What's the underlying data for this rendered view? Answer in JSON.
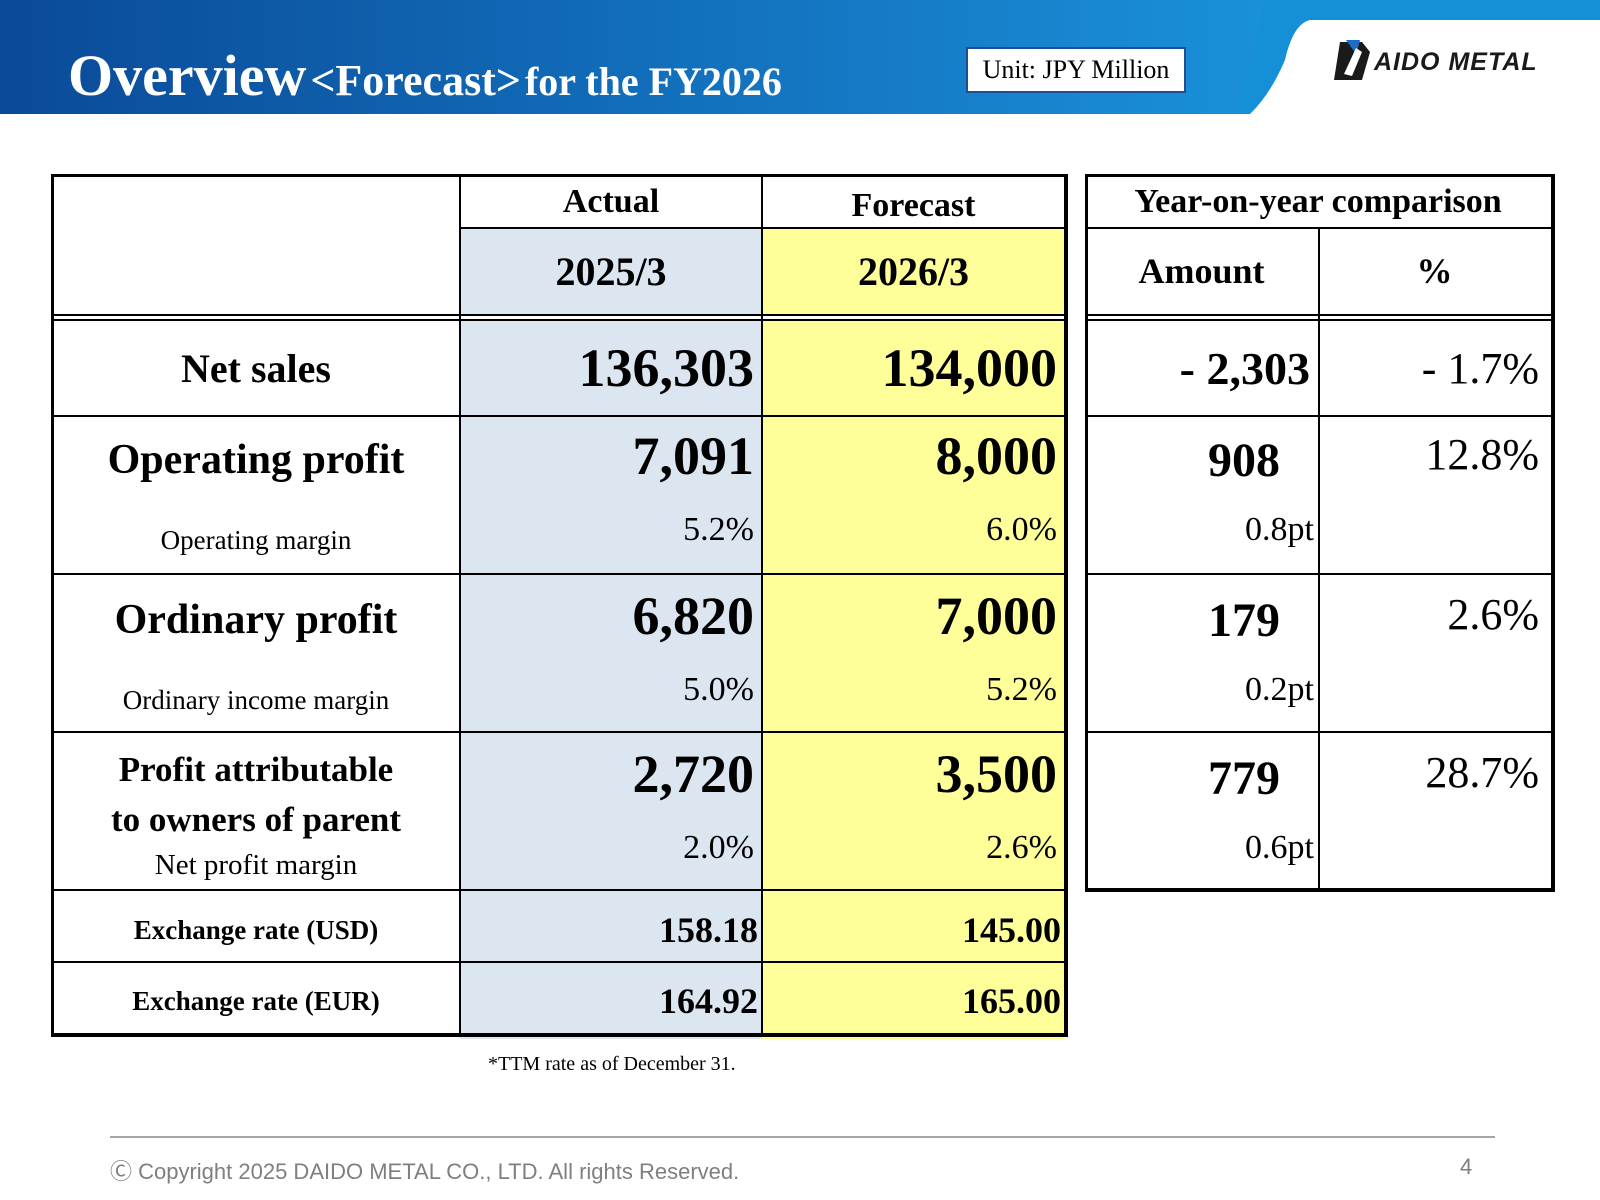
{
  "header": {
    "title_main": "Overview",
    "title_forecast": "<Forecast>",
    "title_suffix": "for the FY2026",
    "unit": "Unit: JPY Million",
    "logo_text": "AIDO METAL",
    "colors": {
      "band_dark": "#0a4a98",
      "band_light": "#1a90da",
      "accent": "#1f4e94"
    }
  },
  "table": {
    "col_actual": "Actual",
    "col_forecast": "Forecast",
    "period_actual": "2025/3",
    "period_forecast": "2026/3",
    "rows": {
      "net_sales": {
        "label": "Net sales",
        "actual": "136,303",
        "forecast": "134,000"
      },
      "operating_profit": {
        "label": "Operating profit",
        "actual": "7,091",
        "forecast": "8,000",
        "sub_label": "Operating margin",
        "sub_actual": "5.2%",
        "sub_forecast": "6.0%"
      },
      "ordinary_profit": {
        "label": "Ordinary profit",
        "actual": "6,820",
        "forecast": "7,000",
        "sub_label": "Ordinary income margin",
        "sub_actual": "5.0%",
        "sub_forecast": "5.2%"
      },
      "profit_parent": {
        "label_line1": "Profit attributable",
        "label_line2": "to owners of parent",
        "actual": "2,720",
        "forecast": "3,500",
        "sub_label": "Net profit margin",
        "sub_actual": "2.0%",
        "sub_forecast": "2.6%"
      },
      "fx_usd": {
        "label": "Exchange rate (USD)",
        "actual": "158.18",
        "forecast": "145.00"
      },
      "fx_eur": {
        "label": "Exchange rate (EUR)",
        "actual": "164.92",
        "forecast": "165.00"
      }
    },
    "colors": {
      "actual_bg": "#dce6f1",
      "forecast_bg": "#ffff99"
    }
  },
  "yoy": {
    "title": "Year-on-year comparison",
    "col_amount": "Amount",
    "col_percent": "%",
    "net_sales": {
      "amount": "- 2,303",
      "percent": "- 1.7%"
    },
    "operating_profit": {
      "amount": "908",
      "pt": "0.8pt",
      "percent": "12.8%"
    },
    "ordinary_profit": {
      "amount": "179",
      "pt": "0.2pt",
      "percent": "2.6%"
    },
    "profit_parent": {
      "amount": "779",
      "pt": "0.6pt",
      "percent": "28.7%"
    }
  },
  "footnote": "*TTM rate as of December 31.",
  "footer": {
    "copyright": "Ⓒ Copyright 2025 DAIDO METAL CO., LTD. All rights Reserved.",
    "page": "4"
  }
}
